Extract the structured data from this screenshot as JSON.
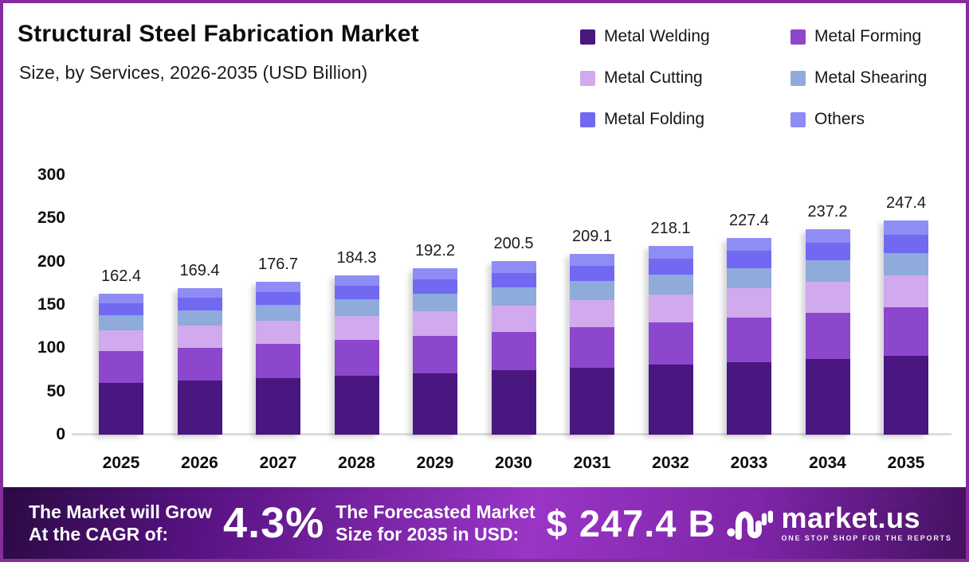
{
  "header": {
    "title": "Structural Steel Fabrication Market",
    "subtitle": "Size, by Services, 2026-2035 (USD Billion)"
  },
  "legend": [
    {
      "label": "Metal Welding",
      "color": "#4a1680"
    },
    {
      "label": "Metal Forming",
      "color": "#8c47cc"
    },
    {
      "label": "Metal Cutting",
      "color": "#d0aaec"
    },
    {
      "label": "Metal Shearing",
      "color": "#8fabdc"
    },
    {
      "label": "Metal Folding",
      "color": "#7269f2"
    },
    {
      "label": "Others",
      "color": "#8e8cf5"
    }
  ],
  "chart_data": {
    "type": "bar",
    "subtype": "stacked",
    "title": "Structural Steel Fabrication Market",
    "subtitle": "Size, by Services, 2026-2035 (USD Billion)",
    "unit": "USD Billion",
    "categories": [
      "2025",
      "2026",
      "2027",
      "2028",
      "2029",
      "2030",
      "2031",
      "2032",
      "2033",
      "2034",
      "2035"
    ],
    "totals": [
      "162.4",
      "169.4",
      "176.7",
      "184.3",
      "192.2",
      "200.5",
      "209.1",
      "218.1",
      "227.4",
      "237.2",
      "247.4"
    ],
    "series": [
      {
        "name": "Metal Welding",
        "color": "#4a1680",
        "values": [
          60.1,
          62.7,
          65.4,
          68.2,
          71.1,
          74.2,
          77.4,
          80.7,
          84.1,
          87.8,
          91.5
        ]
      },
      {
        "name": "Metal Forming",
        "color": "#8c47cc",
        "values": [
          36.4,
          37.9,
          39.6,
          41.3,
          43.1,
          44.9,
          46.8,
          48.9,
          50.9,
          53.1,
          55.4
        ]
      },
      {
        "name": "Metal Cutting",
        "color": "#d0aaec",
        "values": [
          24.4,
          25.4,
          26.5,
          27.6,
          28.8,
          30.1,
          31.4,
          32.7,
          34.1,
          35.6,
          37.1
        ]
      },
      {
        "name": "Metal Shearing",
        "color": "#8fabdc",
        "values": [
          16.9,
          17.6,
          18.4,
          19.2,
          20.0,
          20.9,
          21.7,
          22.7,
          23.6,
          24.7,
          25.7
        ]
      },
      {
        "name": "Metal Folding",
        "color": "#7269f2",
        "values": [
          14.0,
          14.6,
          15.2,
          15.9,
          16.5,
          17.2,
          18.0,
          18.8,
          19.6,
          20.4,
          21.3
        ]
      },
      {
        "name": "Others",
        "color": "#8e8cf5",
        "values": [
          10.7,
          11.2,
          11.7,
          12.2,
          12.7,
          13.2,
          13.8,
          14.4,
          15.0,
          15.7,
          16.3
        ]
      }
    ],
    "yticks": [
      "300",
      "250",
      "200",
      "150",
      "100",
      "50",
      "0"
    ],
    "ylim": [
      0,
      300
    ],
    "grid": false,
    "legend_position": "top-right"
  },
  "banner": {
    "cagr_label_line1": "The Market will Grow",
    "cagr_label_line2": "At the CAGR of:",
    "cagr_value": "4.3%",
    "forecast_label_line1": "The Forecasted Market",
    "forecast_label_line2": "Size for 2035 in USD:",
    "forecast_value": "$ 247.4 B",
    "brand_name": "market.us",
    "brand_tagline": "ONE STOP SHOP FOR THE REPORTS"
  }
}
